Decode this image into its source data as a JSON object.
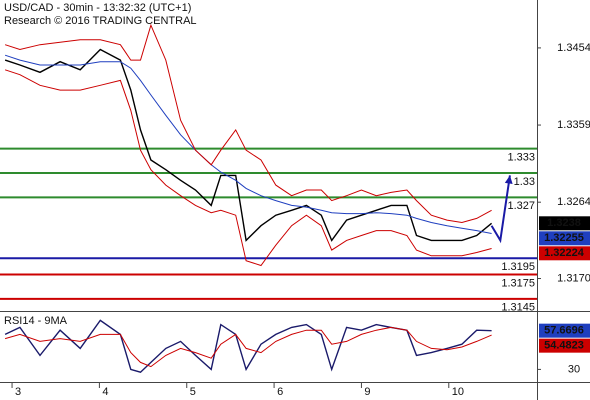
{
  "chart_data": [
    {
      "type": "line",
      "title": "USD/CAD - 30min - 13:32:32 (UTC+1)",
      "subtitle": "Research © 2016 TRADING CENTRAL",
      "x": [
        -0.08,
        0.09,
        0.32,
        0.55,
        0.78,
        1.01,
        1.24,
        1.36,
        1.47,
        1.59,
        1.76,
        1.93,
        2.1,
        2.28,
        2.39,
        2.56,
        2.68,
        2.85,
        3.02,
        3.2,
        3.37,
        3.54,
        3.66,
        3.83,
        4.0,
        4.17,
        4.34,
        4.52,
        4.63,
        4.8,
        4.98,
        5.15,
        5.32,
        5.49
      ],
      "xlim": [
        -0.138,
        6.01
      ],
      "ylim": [
        1.313,
        1.3513
      ],
      "yticks": [
        1.3454,
        1.3359,
        1.3264,
        {
          "value": 1.317,
          "label": "1.3170"
        }
      ],
      "grid": false,
      "series": [
        {
          "color": "#000000",
          "values": [
            1.3439,
            1.3433,
            1.3424,
            1.3437,
            1.3427,
            1.3452,
            1.3439,
            1.3402,
            1.3353,
            1.3316,
            1.3304,
            1.3291,
            1.3279,
            1.326,
            1.3297,
            1.3297,
            1.3217,
            1.3235,
            1.3248,
            1.3254,
            1.326,
            1.3248,
            1.3217,
            1.3242,
            1.3248,
            1.3254,
            1.326,
            1.326,
            1.3223,
            1.3217,
            1.3217,
            1.3217,
            1.3223,
            1.3238
          ]
        },
        {
          "color": "#1f3fbf",
          "values": [
            1.3445,
            1.3439,
            1.3433,
            1.3433,
            1.3433,
            1.3437,
            1.3437,
            1.3429,
            1.3414,
            1.3396,
            1.3371,
            1.3347,
            1.3328,
            1.331,
            1.3301,
            1.3291,
            1.3281,
            1.3272,
            1.3266,
            1.326,
            1.3258,
            1.3254,
            1.3251,
            1.325,
            1.325,
            1.3251,
            1.325,
            1.3248,
            1.3244,
            1.3239,
            1.3235,
            1.3232,
            1.3229,
            1.32255
          ]
        },
        {
          "color": "#cc0000",
          "values": [
            1.3458,
            1.3452,
            1.3458,
            1.3461,
            1.3464,
            1.3464,
            1.3458,
            1.3439,
            1.3439,
            1.3482,
            1.3439,
            1.3365,
            1.3328,
            1.331,
            1.3328,
            1.3353,
            1.3328,
            1.3316,
            1.3285,
            1.3272,
            1.3279,
            1.3279,
            1.3266,
            1.3272,
            1.3279,
            1.3272,
            1.3276,
            1.3279,
            1.3266,
            1.3248,
            1.3242,
            1.3239,
            1.3244,
            1.3254
          ]
        },
        {
          "color": "#cc0000",
          "values": [
            1.3427,
            1.3421,
            1.3408,
            1.3402,
            1.3402,
            1.3408,
            1.3414,
            1.3377,
            1.3328,
            1.3304,
            1.3285,
            1.3272,
            1.326,
            1.3251,
            1.3254,
            1.3248,
            1.3192,
            1.3186,
            1.3211,
            1.3235,
            1.3248,
            1.3235,
            1.3205,
            1.3217,
            1.3223,
            1.3229,
            1.3229,
            1.3223,
            1.3205,
            1.3198,
            1.3198,
            1.3198,
            1.3202,
            1.3207
          ]
        }
      ],
      "levels": [
        {
          "value": 1.333,
          "color": "#2e8b2e"
        },
        {
          "value": 1.33,
          "color": "#2e8b2e"
        },
        {
          "value": 1.327,
          "color": "#2e8b2e"
        },
        {
          "value": 1.3195,
          "color": "#1a1aa6"
        },
        {
          "value": 1.3175,
          "color": "#cc0000"
        },
        {
          "value": 1.3145,
          "color": "#cc0000"
        }
      ],
      "projection": {
        "color": "#1a1aa6",
        "x": [
          5.49,
          5.59,
          5.7
        ],
        "values": [
          1.3235,
          1.3217,
          1.3297
        ]
      },
      "price_labels": [
        {
          "value": 1.3238,
          "color": "#000000"
        },
        {
          "value": 1.32255,
          "color": "#1f3fbf"
        },
        {
          "value": 1.32224,
          "color": "#cc0000"
        }
      ]
    },
    {
      "type": "line",
      "title": "RSI14 - 9MA",
      "x": [
        -0.08,
        0.09,
        0.32,
        0.55,
        0.78,
        1.01,
        1.24,
        1.36,
        1.47,
        1.59,
        1.76,
        1.93,
        2.1,
        2.28,
        2.39,
        2.56,
        2.68,
        2.85,
        3.02,
        3.2,
        3.37,
        3.54,
        3.66,
        3.83,
        4.0,
        4.17,
        4.34,
        4.52,
        4.63,
        4.8,
        4.98,
        5.15,
        5.32,
        5.49
      ],
      "xlim": [
        -0.138,
        6.01
      ],
      "xticks": [
        {
          "value": 0,
          "label": "3"
        },
        {
          "value": 1,
          "label": "4"
        },
        {
          "value": 2,
          "label": "5"
        },
        {
          "value": 3,
          "label": "6"
        },
        {
          "value": 4,
          "label": "9"
        },
        {
          "value": 5,
          "label": "10"
        }
      ],
      "ylim": [
        21,
        71
      ],
      "yticks": [
        30
      ],
      "series": [
        {
          "color": "#1a1a6a",
          "values": [
            55,
            60,
            40,
            58,
            45,
            65,
            55,
            30,
            28,
            35,
            45,
            50,
            40,
            30,
            62,
            55,
            30,
            48,
            55,
            60,
            62,
            55,
            30,
            60,
            58,
            62,
            60,
            58,
            40,
            42,
            45,
            48,
            58,
            57.6696
          ]
        },
        {
          "color": "#cc0000",
          "values": [
            52,
            55,
            50,
            52,
            50,
            55,
            55,
            42,
            35,
            32,
            40,
            45,
            42,
            38,
            48,
            55,
            45,
            42,
            50,
            55,
            58,
            58,
            48,
            50,
            55,
            58,
            60,
            58,
            50,
            45,
            44,
            46,
            50,
            54.4823
          ]
        }
      ],
      "price_labels": [
        {
          "value": 57.6696,
          "color": "#1f3fbf"
        },
        {
          "value": 54.4823,
          "color": "#cc0000"
        }
      ]
    }
  ]
}
